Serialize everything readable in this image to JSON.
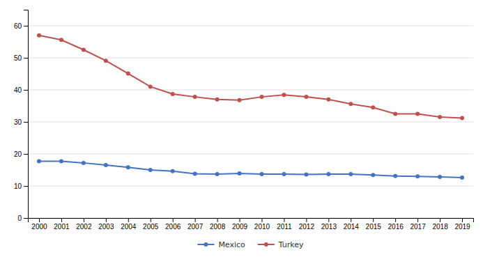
{
  "chart_data": {
    "type": "line",
    "x": [
      2000,
      2001,
      2002,
      2003,
      2004,
      2005,
      2006,
      2007,
      2008,
      2009,
      2010,
      2011,
      2012,
      2013,
      2014,
      2015,
      2016,
      2017,
      2018,
      2019
    ],
    "series": [
      {
        "name": "Mexico",
        "color": "#4472C4",
        "values": [
          17.7,
          17.7,
          17.2,
          16.5,
          15.8,
          15.0,
          14.6,
          13.8,
          13.7,
          13.9,
          13.7,
          13.7,
          13.6,
          13.7,
          13.7,
          13.4,
          13.1,
          13.0,
          12.8,
          12.6
        ]
      },
      {
        "name": "Turkey",
        "color": "#C0504D",
        "values": [
          57.0,
          55.6,
          52.5,
          49.1,
          45.1,
          41.0,
          38.7,
          37.8,
          37.0,
          36.8,
          37.8,
          38.4,
          37.8,
          37.0,
          35.6,
          34.5,
          32.5,
          32.5,
          31.5,
          31.2
        ]
      }
    ],
    "xlim": [
      1999.5,
      2019.5
    ],
    "xticks": [
      2000,
      2001,
      2002,
      2003,
      2004,
      2005,
      2006,
      2007,
      2008,
      2009,
      2010,
      2011,
      2012,
      2013,
      2014,
      2015,
      2016,
      2017,
      2018,
      2019
    ],
    "ylim": [
      0,
      65
    ],
    "yticks": [
      0,
      10,
      20,
      30,
      40,
      50,
      60
    ],
    "grid": true,
    "legend": "bottom",
    "marker": "circle"
  }
}
